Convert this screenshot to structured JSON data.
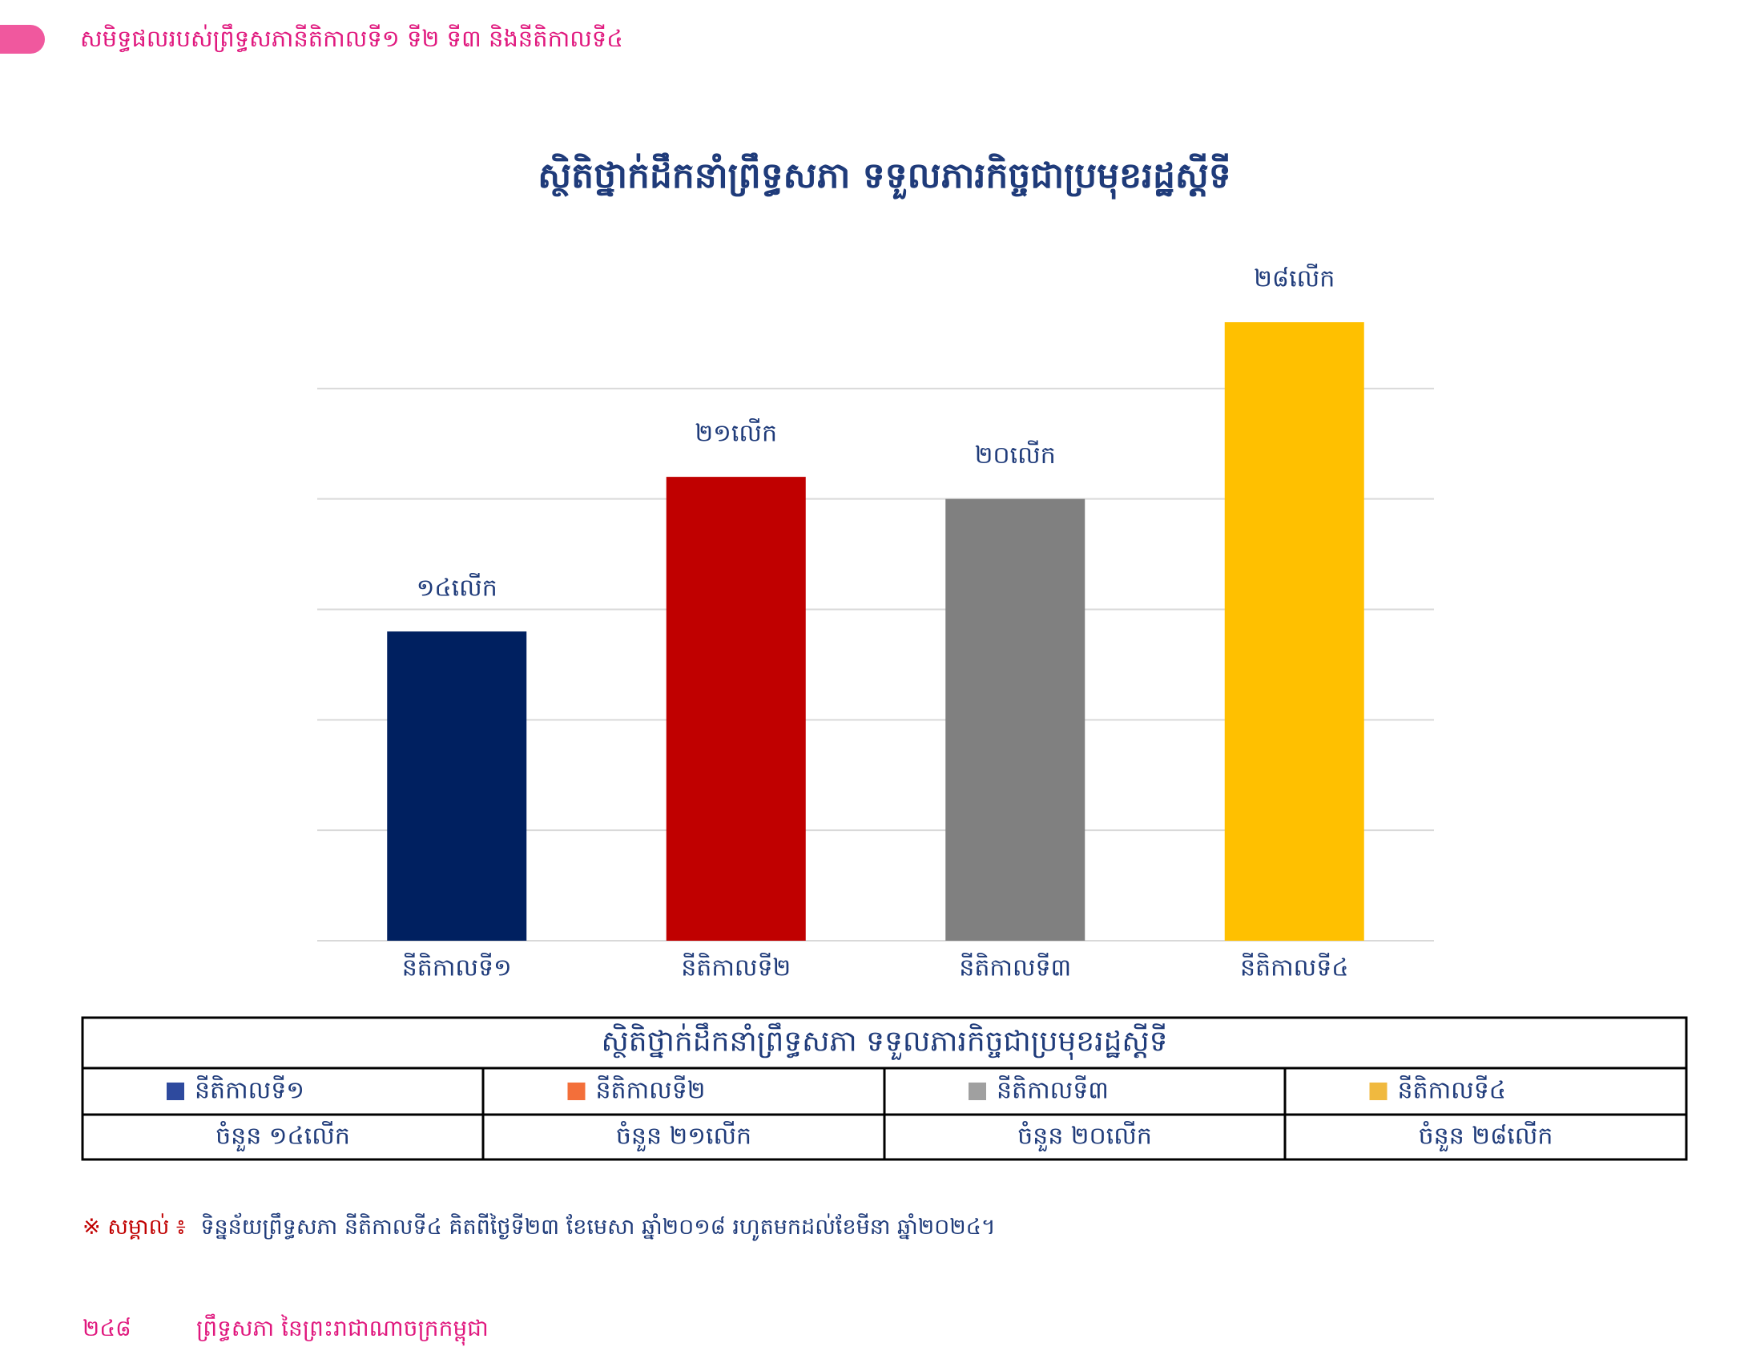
{
  "header": {
    "title": "សមិទ្ធផលរបស់ព្រឹទ្ធសភានីតិកាលទី១ ទី២ ទី៣ និងនីតិកាលទី៤"
  },
  "chart_data": {
    "type": "bar",
    "title": "ស្ថិតិថ្នាក់ដឹកនាំព្រឹទ្ធសភា ទទួលភារកិច្ចជាប្រមុខរដ្ឋស្ដីទី",
    "categories": [
      "នីតិកាលទី១",
      "នីតិកាលទី២",
      "នីតិកាលទី៣",
      "នីតិកាលទី៤"
    ],
    "values": [
      14,
      21,
      20,
      28
    ],
    "value_labels": [
      "១៤លើក",
      "២១លើក",
      "២០លើក",
      "២៨លើក"
    ],
    "colors": [
      "#002060",
      "#c00000",
      "#808080",
      "#ffc000"
    ],
    "ylim": [
      0,
      30
    ],
    "yticks": [
      0,
      5,
      10,
      15,
      20,
      25
    ],
    "grid": true
  },
  "table": {
    "title": "ស្ថិតិថ្នាក់ដឹកនាំព្រឹទ្ធសភា ទទួលភារកិច្ចជាប្រមុខរដ្ឋស្ដីទី",
    "legend": [
      {
        "name": "នីតិកាលទី១",
        "color": "#2e4a9e"
      },
      {
        "name": "នីតិកាលទី២",
        "color": "#f36f3a"
      },
      {
        "name": "នីតិកាលទី៣",
        "color": "#a0a0a0"
      },
      {
        "name": "នីតិកាលទី៤",
        "color": "#f0b93f"
      }
    ],
    "counts": [
      "ចំនួន ១៤លើក",
      "ចំនួន ២១លើក",
      "ចំនួន ២០លើក",
      "ចំនួន ២៨លើក"
    ]
  },
  "note": {
    "label": "※ សម្គាល់ ៖",
    "text": "ទិន្នន័យព្រឹទ្ធសភា នីតិកាលទី៤ គិតពីថ្ងៃទី២៣ ខែមេសា ឆ្នាំ២០១៨ រហូតមកដល់ខែមីនា ឆ្នាំ២០២៤។"
  },
  "footer": {
    "page": "២៤៨",
    "text": "ព្រឹទ្ធសភា នៃព្រះរាជាណាចក្រកម្ពុជា"
  }
}
